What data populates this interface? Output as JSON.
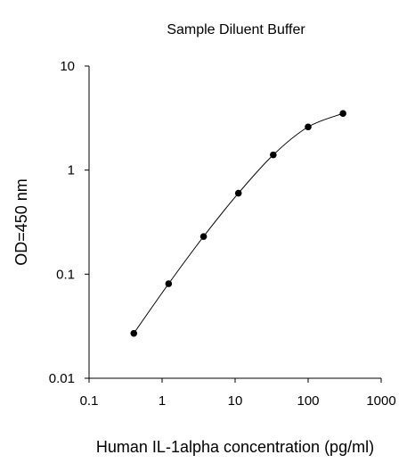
{
  "chart_data": {
    "type": "line",
    "title": "Sample Diluent Buffer",
    "xlabel": "Human IL-1alpha concentration (pg/ml)",
    "ylabel": "OD=450 nm",
    "x_scale": "log",
    "y_scale": "log",
    "xlim": [
      0.1,
      1000
    ],
    "ylim": [
      0.01,
      10
    ],
    "x_ticks": [
      0.1,
      1,
      10,
      100,
      1000
    ],
    "x_tick_labels": [
      "0.1",
      "1",
      "10",
      "100",
      "1000"
    ],
    "y_ticks": [
      0.01,
      0.1,
      1,
      10
    ],
    "y_tick_labels": [
      "0.01",
      "0.1",
      "1",
      "10"
    ],
    "grid": false,
    "legend": "none",
    "series": [
      {
        "x": [
          0.41,
          1.23,
          3.7,
          11.1,
          33.3,
          100,
          300
        ],
        "y": [
          0.027,
          0.081,
          0.23,
          0.6,
          1.4,
          2.6,
          3.5
        ],
        "color": "#000000",
        "marker": "circle"
      }
    ]
  }
}
